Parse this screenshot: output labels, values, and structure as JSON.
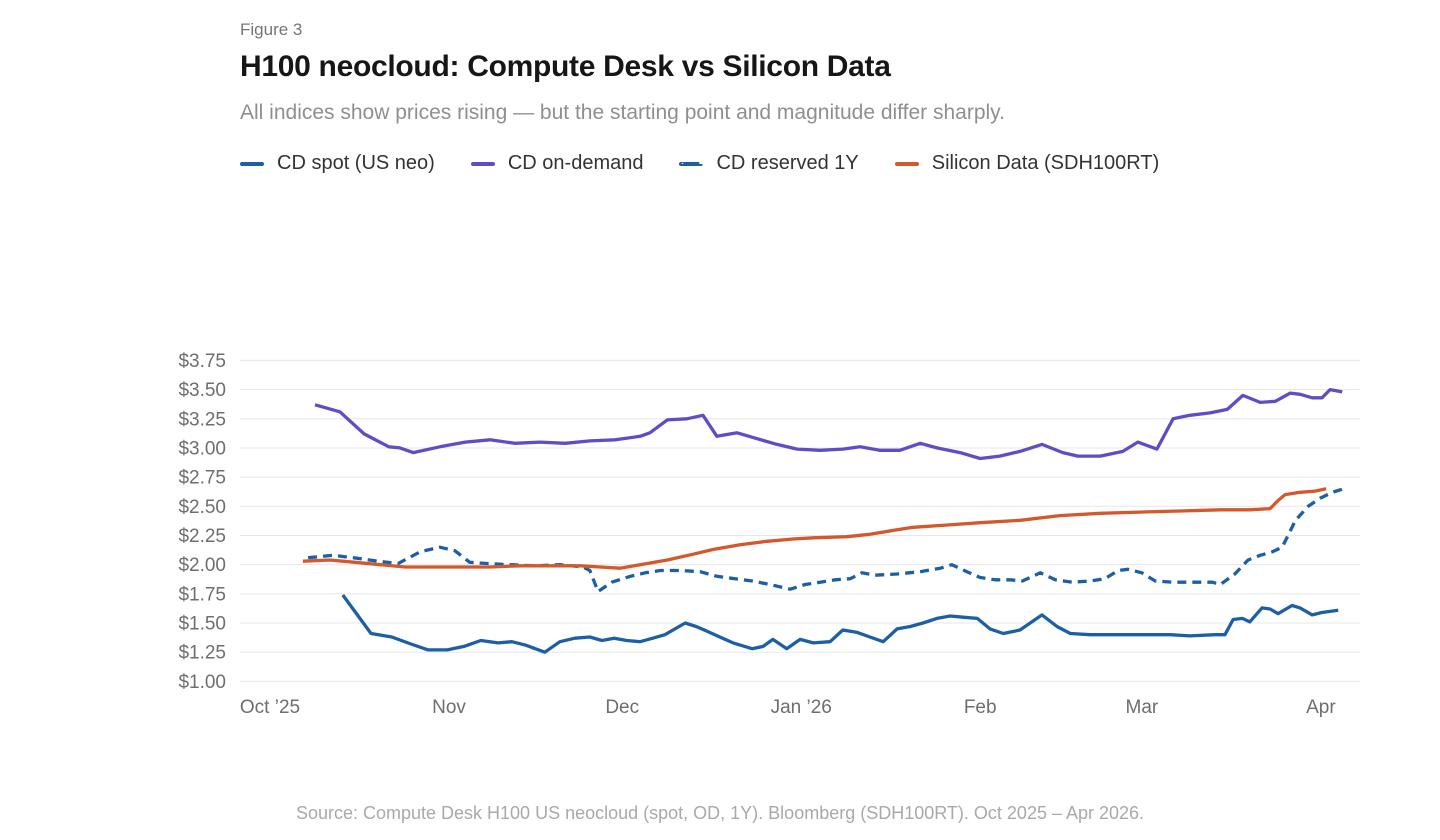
{
  "header": {
    "figure_label": "Figure 3",
    "title": "H100 neocloud: Compute Desk vs Silicon Data",
    "subtitle": "All indices show prices rising — but the starting point and magnitude differ sharply."
  },
  "legend": {
    "items": [
      {
        "label": "CD spot (US neo)"
      },
      {
        "label": "CD on-demand"
      },
      {
        "label": "CD reserved 1Y"
      },
      {
        "label": "Silicon Data (SDH100RT)"
      }
    ]
  },
  "footer": {
    "source": "Source: Compute Desk H100 US neocloud (spot, OD, 1Y). Bloomberg (SDH100RT). Oct 2025 – Apr 2026."
  },
  "chart_data": {
    "type": "line",
    "title": "H100 neocloud: Compute Desk vs Silicon Data",
    "x_unit": "days since Oct 1, 2025",
    "xlim": [
      -5.2,
      188.8
    ],
    "ylim": [
      1.0,
      3.75
    ],
    "grid": "horizontal",
    "legend_position": "top",
    "y_ticks": [
      {
        "value": 3.75,
        "label": "$3.75"
      },
      {
        "value": 3.5,
        "label": "$3.50"
      },
      {
        "value": 3.25,
        "label": "$3.25"
      },
      {
        "value": 3.0,
        "label": "$3.00"
      },
      {
        "value": 2.75,
        "label": "$2.75"
      },
      {
        "value": 2.5,
        "label": "$2.50"
      },
      {
        "value": 2.25,
        "label": "$2.25"
      },
      {
        "value": 2.0,
        "label": "$2.00"
      },
      {
        "value": 1.75,
        "label": "$1.75"
      },
      {
        "value": 1.5,
        "label": "$1.50"
      },
      {
        "value": 1.25,
        "label": "$1.25"
      },
      {
        "value": 1.0,
        "label": "$1.00"
      }
    ],
    "x_ticks": [
      {
        "day": 0,
        "label": "Oct ’25"
      },
      {
        "day": 31,
        "label": "Nov"
      },
      {
        "day": 61,
        "label": "Dec"
      },
      {
        "day": 92,
        "label": "Jan ’26"
      },
      {
        "day": 123,
        "label": "Feb"
      },
      {
        "day": 151,
        "label": "Mar"
      },
      {
        "day": 182,
        "label": "Apr"
      }
    ],
    "series": [
      {
        "name": "CD spot (US neo)",
        "color": "#1d5fa5",
        "dash": "solid",
        "points": [
          [
            12.6,
            1.74
          ],
          [
            17.5,
            1.41
          ],
          [
            21.1,
            1.38
          ],
          [
            24.4,
            1.32
          ],
          [
            27.4,
            1.27
          ],
          [
            30.7,
            1.27
          ],
          [
            33.6,
            1.3
          ],
          [
            36.5,
            1.35
          ],
          [
            39.5,
            1.33
          ],
          [
            41.9,
            1.34
          ],
          [
            44.3,
            1.31
          ],
          [
            47.6,
            1.25
          ],
          [
            50.2,
            1.34
          ],
          [
            52.8,
            1.37
          ],
          [
            55.4,
            1.38
          ],
          [
            57.5,
            1.35
          ],
          [
            59.6,
            1.37
          ],
          [
            61.8,
            1.35
          ],
          [
            64.1,
            1.34
          ],
          [
            66.3,
            1.37
          ],
          [
            68.4,
            1.4
          ],
          [
            71.9,
            1.5
          ],
          [
            73.8,
            1.47
          ],
          [
            75.7,
            1.43
          ],
          [
            77.9,
            1.38
          ],
          [
            80.2,
            1.33
          ],
          [
            83.5,
            1.28
          ],
          [
            85.4,
            1.3
          ],
          [
            87.1,
            1.36
          ],
          [
            89.5,
            1.28
          ],
          [
            91.8,
            1.36
          ],
          [
            94.1,
            1.33
          ],
          [
            97.0,
            1.34
          ],
          [
            99.2,
            1.44
          ],
          [
            101.7,
            1.42
          ],
          [
            103.9,
            1.38
          ],
          [
            106.2,
            1.34
          ],
          [
            108.6,
            1.45
          ],
          [
            110.9,
            1.47
          ],
          [
            113.1,
            1.5
          ],
          [
            115.5,
            1.54
          ],
          [
            117.8,
            1.56
          ],
          [
            120.0,
            1.55
          ],
          [
            122.5,
            1.54
          ],
          [
            124.7,
            1.45
          ],
          [
            127.0,
            1.41
          ],
          [
            129.9,
            1.44
          ],
          [
            133.7,
            1.57
          ],
          [
            136.3,
            1.47
          ],
          [
            138.6,
            1.41
          ],
          [
            142.0,
            1.4
          ],
          [
            145.5,
            1.4
          ],
          [
            149.0,
            1.4
          ],
          [
            152.4,
            1.4
          ],
          [
            155.9,
            1.4
          ],
          [
            159.3,
            1.39
          ],
          [
            163.7,
            1.4
          ],
          [
            165.4,
            1.4
          ],
          [
            166.8,
            1.53
          ],
          [
            168.4,
            1.54
          ],
          [
            169.7,
            1.51
          ],
          [
            171.8,
            1.63
          ],
          [
            173.2,
            1.62
          ],
          [
            174.6,
            1.58
          ],
          [
            177.0,
            1.65
          ],
          [
            178.4,
            1.63
          ],
          [
            180.5,
            1.57
          ],
          [
            182.2,
            1.59
          ],
          [
            185.0,
            1.61
          ]
        ]
      },
      {
        "name": "CD on-demand",
        "color": "#5d4ec6",
        "dash": "solid",
        "points": [
          [
            7.8,
            3.37
          ],
          [
            12.1,
            3.31
          ],
          [
            16.3,
            3.12
          ],
          [
            20.6,
            3.01
          ],
          [
            22.5,
            3.0
          ],
          [
            24.8,
            2.96
          ],
          [
            29.4,
            3.01
          ],
          [
            33.8,
            3.05
          ],
          [
            38.1,
            3.07
          ],
          [
            42.4,
            3.04
          ],
          [
            46.8,
            3.05
          ],
          [
            51.1,
            3.04
          ],
          [
            55.4,
            3.06
          ],
          [
            59.8,
            3.07
          ],
          [
            64.1,
            3.1
          ],
          [
            65.8,
            3.13
          ],
          [
            68.8,
            3.24
          ],
          [
            72.2,
            3.25
          ],
          [
            75.0,
            3.28
          ],
          [
            77.4,
            3.1
          ],
          [
            80.9,
            3.13
          ],
          [
            84.3,
            3.08
          ],
          [
            87.8,
            3.03
          ],
          [
            91.3,
            2.99
          ],
          [
            95.3,
            2.98
          ],
          [
            99.2,
            2.99
          ],
          [
            102.2,
            3.01
          ],
          [
            105.6,
            2.98
          ],
          [
            109.1,
            2.98
          ],
          [
            112.6,
            3.04
          ],
          [
            115.5,
            3.0
          ],
          [
            119.5,
            2.96
          ],
          [
            123.0,
            2.91
          ],
          [
            126.4,
            2.93
          ],
          [
            129.9,
            2.97
          ],
          [
            133.7,
            3.03
          ],
          [
            137.3,
            2.96
          ],
          [
            139.9,
            2.93
          ],
          [
            143.8,
            2.93
          ],
          [
            147.7,
            2.97
          ],
          [
            150.3,
            3.05
          ],
          [
            153.6,
            2.99
          ],
          [
            156.4,
            3.25
          ],
          [
            159.3,
            3.28
          ],
          [
            162.8,
            3.3
          ],
          [
            165.8,
            3.33
          ],
          [
            168.5,
            3.45
          ],
          [
            171.5,
            3.39
          ],
          [
            174.1,
            3.4
          ],
          [
            176.7,
            3.47
          ],
          [
            178.4,
            3.46
          ],
          [
            180.5,
            3.43
          ],
          [
            182.2,
            3.43
          ],
          [
            183.6,
            3.5
          ],
          [
            185.7,
            3.48
          ]
        ]
      },
      {
        "name": "CD reserved 1Y",
        "color": "#1d5fa5",
        "dash": "dashed",
        "points": [
          [
            6.6,
            2.06
          ],
          [
            10.9,
            2.08
          ],
          [
            14.4,
            2.06
          ],
          [
            18.7,
            2.03
          ],
          [
            22.2,
            2.01
          ],
          [
            26.0,
            2.11
          ],
          [
            29.4,
            2.15
          ],
          [
            32.0,
            2.12
          ],
          [
            34.6,
            2.02
          ],
          [
            37.6,
            2.01
          ],
          [
            41.6,
            2.0
          ],
          [
            45.9,
            1.99
          ],
          [
            50.2,
            2.0
          ],
          [
            54.2,
            1.98
          ],
          [
            55.4,
            1.95
          ],
          [
            56.8,
            1.77
          ],
          [
            59.2,
            1.85
          ],
          [
            62.4,
            1.9
          ],
          [
            65.0,
            1.93
          ],
          [
            67.6,
            1.95
          ],
          [
            71.0,
            1.95
          ],
          [
            74.5,
            1.94
          ],
          [
            77.4,
            1.9
          ],
          [
            80.5,
            1.88
          ],
          [
            83.5,
            1.86
          ],
          [
            86.6,
            1.83
          ],
          [
            90.1,
            1.79
          ],
          [
            92.7,
            1.83
          ],
          [
            95.3,
            1.85
          ],
          [
            97.9,
            1.87
          ],
          [
            100.5,
            1.88
          ],
          [
            102.5,
            1.93
          ],
          [
            104.8,
            1.91
          ],
          [
            108.6,
            1.92
          ],
          [
            112.6,
            1.94
          ],
          [
            116.1,
            1.97
          ],
          [
            118.1,
            2.0
          ],
          [
            120.7,
            1.94
          ],
          [
            123.0,
            1.89
          ],
          [
            125.6,
            1.87
          ],
          [
            128.2,
            1.87
          ],
          [
            130.3,
            1.86
          ],
          [
            133.4,
            1.93
          ],
          [
            136.0,
            1.87
          ],
          [
            138.9,
            1.85
          ],
          [
            142.0,
            1.86
          ],
          [
            144.6,
            1.88
          ],
          [
            146.9,
            1.95
          ],
          [
            148.6,
            1.96
          ],
          [
            151.0,
            1.93
          ],
          [
            153.3,
            1.86
          ],
          [
            156.2,
            1.85
          ],
          [
            159.7,
            1.85
          ],
          [
            163.2,
            1.85
          ],
          [
            164.6,
            1.83
          ],
          [
            167.1,
            1.92
          ],
          [
            169.4,
            2.04
          ],
          [
            171.5,
            2.08
          ],
          [
            173.6,
            2.11
          ],
          [
            175.3,
            2.15
          ],
          [
            177.6,
            2.38
          ],
          [
            179.8,
            2.5
          ],
          [
            181.9,
            2.57
          ],
          [
            184.0,
            2.62
          ],
          [
            185.9,
            2.65
          ]
        ]
      },
      {
        "name": "Silicon Data (SDH100RT)",
        "color": "#d4582e",
        "dash": "solid",
        "points": [
          [
            5.7,
            2.03
          ],
          [
            10.4,
            2.04
          ],
          [
            14.7,
            2.02
          ],
          [
            19.1,
            2.0
          ],
          [
            23.4,
            1.98
          ],
          [
            27.7,
            1.98
          ],
          [
            32.9,
            1.98
          ],
          [
            38.1,
            1.98
          ],
          [
            43.3,
            1.99
          ],
          [
            48.5,
            1.99
          ],
          [
            53.7,
            1.99
          ],
          [
            57.2,
            1.98
          ],
          [
            60.6,
            1.97
          ],
          [
            64.1,
            2.0
          ],
          [
            68.8,
            2.04
          ],
          [
            73.3,
            2.09
          ],
          [
            76.7,
            2.13
          ],
          [
            81.4,
            2.17
          ],
          [
            86.1,
            2.2
          ],
          [
            90.6,
            2.22
          ],
          [
            94.1,
            2.23
          ],
          [
            99.9,
            2.24
          ],
          [
            103.9,
            2.26
          ],
          [
            108.6,
            2.3
          ],
          [
            111.4,
            2.32
          ],
          [
            117.3,
            2.34
          ],
          [
            123.0,
            2.36
          ],
          [
            129.9,
            2.38
          ],
          [
            136.8,
            2.42
          ],
          [
            143.8,
            2.44
          ],
          [
            150.7,
            2.45
          ],
          [
            157.6,
            2.46
          ],
          [
            164.6,
            2.47
          ],
          [
            169.7,
            2.47
          ],
          [
            173.2,
            2.48
          ],
          [
            174.6,
            2.55
          ],
          [
            175.8,
            2.6
          ],
          [
            178.4,
            2.62
          ],
          [
            181.0,
            2.63
          ],
          [
            182.9,
            2.65
          ]
        ]
      }
    ]
  }
}
